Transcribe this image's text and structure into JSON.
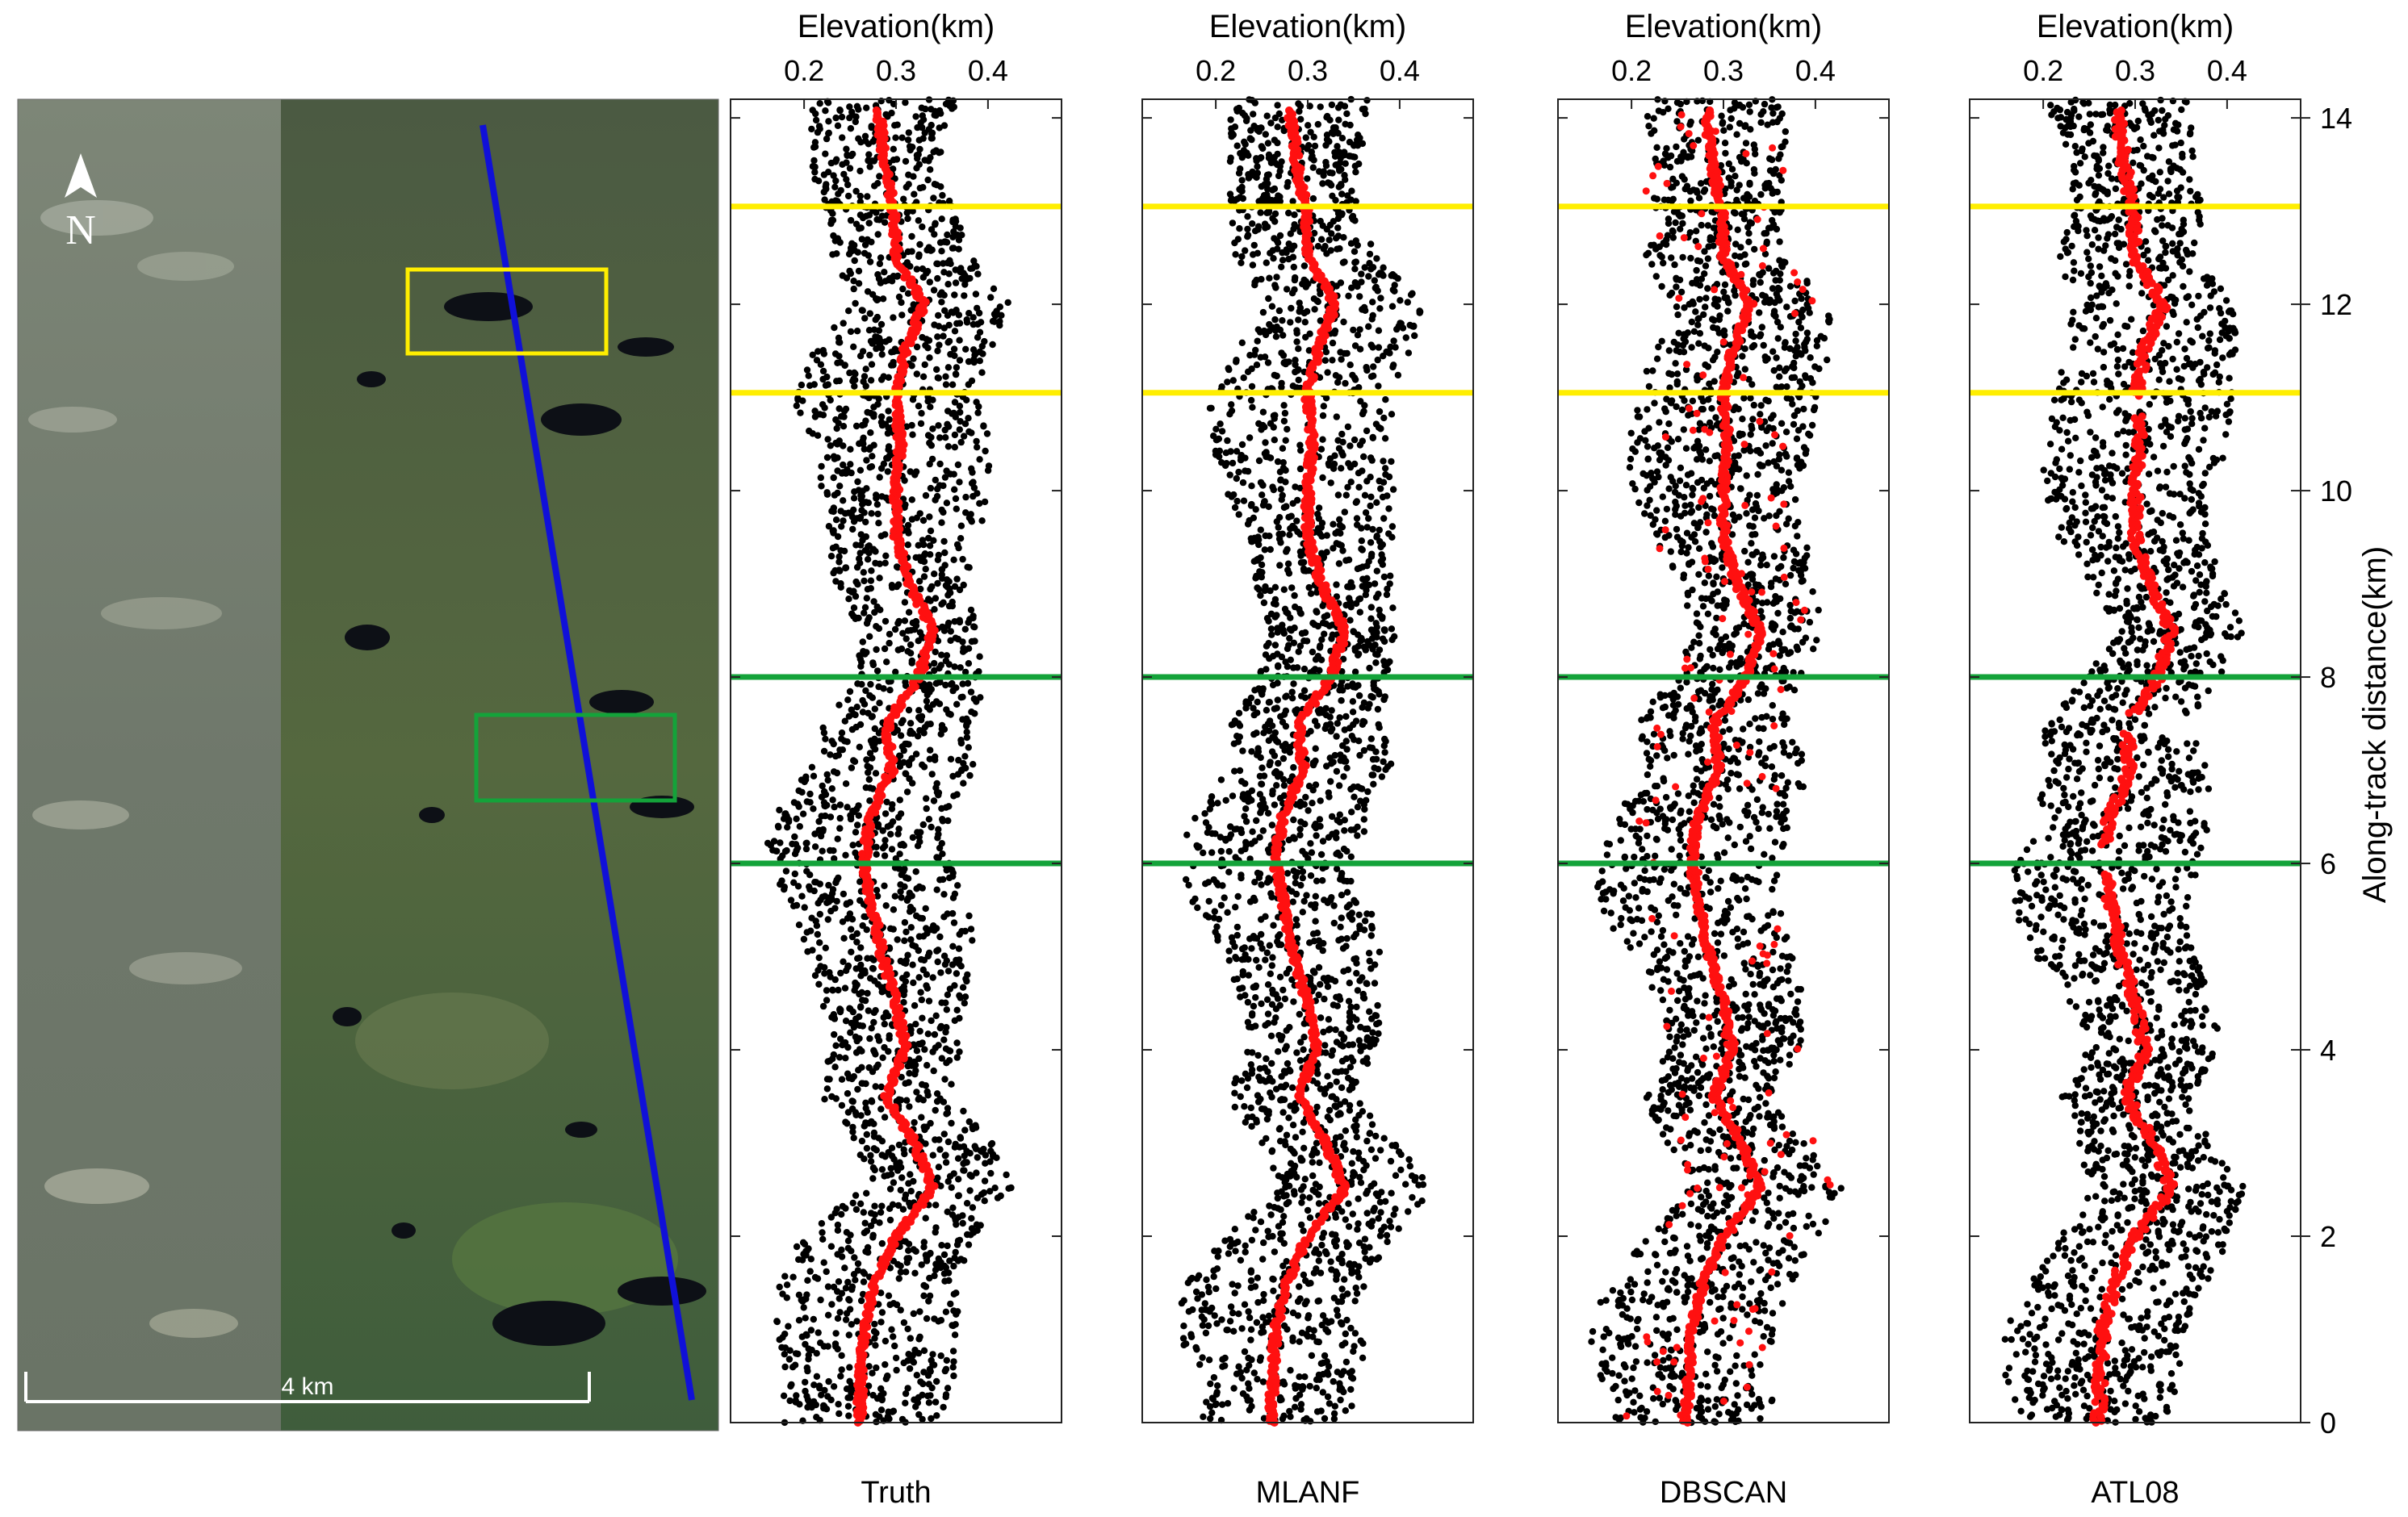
{
  "map": {
    "scale_label": "4 km",
    "north_label": "N",
    "track_color": "#1010d8",
    "box_colors": [
      "#ffee00",
      "#14a33a"
    ]
  },
  "axes": {
    "top_label": "Elevation(km)",
    "right_label": "Along-track distance(km)",
    "x_ticks": [
      0.2,
      0.3,
      0.4
    ],
    "x_tick_labels": [
      "0.2",
      "0.3",
      "0.4"
    ],
    "y_ticks": [
      0,
      2,
      4,
      6,
      8,
      10,
      12,
      14
    ],
    "y_tick_labels": [
      "0",
      "2",
      "4",
      "6",
      "8",
      "10",
      "12",
      "14"
    ]
  },
  "chart_data": {
    "type": "scatter",
    "panels": [
      "Truth",
      "MLANF",
      "DBSCAN",
      "ATL08"
    ],
    "xlabel": "Elevation(km)",
    "ylabel": "Along-track distance(km)",
    "xlim": [
      0.12,
      0.48
    ],
    "ylim": [
      0,
      14.2
    ],
    "series": [
      {
        "color": "#000000"
      },
      {
        "color": "#ff1010"
      }
    ],
    "ground_profile": {
      "distance_km": [
        0,
        0.5,
        1,
        1.5,
        2,
        2.5,
        3,
        3.5,
        4,
        4.5,
        5,
        5.5,
        6,
        6.5,
        7,
        7.5,
        8,
        8.5,
        9,
        9.5,
        10,
        10.5,
        11,
        11.5,
        12,
        12.5,
        13,
        13.5,
        14
      ],
      "elevation_km": [
        0.26,
        0.262,
        0.265,
        0.278,
        0.3,
        0.34,
        0.32,
        0.29,
        0.31,
        0.3,
        0.285,
        0.275,
        0.265,
        0.272,
        0.295,
        0.29,
        0.325,
        0.34,
        0.315,
        0.3,
        0.3,
        0.305,
        0.3,
        0.31,
        0.33,
        0.3,
        0.298,
        0.288,
        0.282
      ]
    },
    "reference_lines": [
      {
        "distance_km": 13.05,
        "color": "#ffee00"
      },
      {
        "distance_km": 11.05,
        "color": "#ffee00"
      },
      {
        "distance_km": 8.0,
        "color": "#14a33a"
      },
      {
        "distance_km": 6.0,
        "color": "#14a33a"
      }
    ]
  }
}
